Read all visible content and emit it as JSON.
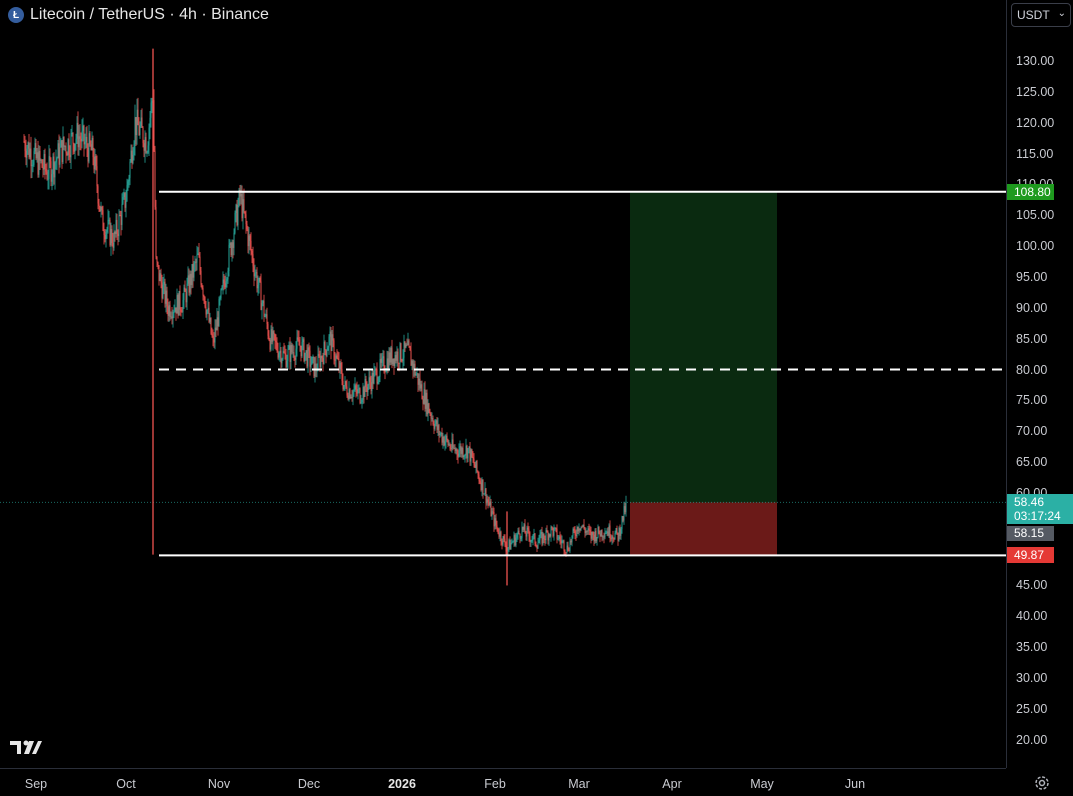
{
  "header": {
    "title": "Litecoin / TetherUS · 4h · Binance",
    "coin_icon": "litecoin-icon"
  },
  "currency": {
    "selected": "USDT"
  },
  "price_axis": {
    "labels": [
      "130.00",
      "125.00",
      "120.00",
      "115.00",
      "110.00",
      "105.00",
      "100.00",
      "95.00",
      "90.00",
      "85.00",
      "80.00",
      "75.00",
      "70.00",
      "65.00",
      "60.00",
      "45.00",
      "40.00",
      "35.00",
      "30.00",
      "25.00",
      "20.00"
    ]
  },
  "tags": {
    "target_price": "108.80",
    "current_price": "58.46",
    "countdown": "03:17:24",
    "cursor_price": "58.15",
    "stop_price": "49.87"
  },
  "time_axis": {
    "labels": [
      {
        "text": "Sep",
        "bold": false
      },
      {
        "text": "Oct",
        "bold": false
      },
      {
        "text": "Nov",
        "bold": false
      },
      {
        "text": "Dec",
        "bold": false
      },
      {
        "text": "2026",
        "bold": true
      },
      {
        "text": "Feb",
        "bold": false
      },
      {
        "text": "Mar",
        "bold": false
      },
      {
        "text": "Apr",
        "bold": false
      },
      {
        "text": "May",
        "bold": false
      },
      {
        "text": "Jun",
        "bold": false
      }
    ]
  },
  "colors": {
    "up": "#26a69a",
    "down": "#ef5350",
    "profit_zone": "#0a2a10",
    "loss_zone": "#6b1a18",
    "target_tag": "#1e9a1e",
    "stop_tag": "#e53935",
    "price_tag": "#2bb0a5"
  },
  "chart_data": {
    "type": "candlestick",
    "symbol": "Litecoin / TetherUS",
    "interval": "4h",
    "exchange": "Binance",
    "ylim": [
      17,
      135
    ],
    "close_path": [
      {
        "x": "Aug 28",
        "y": 117
      },
      {
        "x": "Sep 1",
        "y": 114
      },
      {
        "x": "Sep 5",
        "y": 112
      },
      {
        "x": "Sep 10",
        "y": 116
      },
      {
        "x": "Sep 15",
        "y": 118
      },
      {
        "x": "Sep 20",
        "y": 115
      },
      {
        "x": "Sep 23",
        "y": 104
      },
      {
        "x": "Sep 27",
        "y": 101
      },
      {
        "x": "Oct 1",
        "y": 108
      },
      {
        "x": "Oct 4",
        "y": 120
      },
      {
        "x": "Oct 8",
        "y": 117
      },
      {
        "x": "Oct 10",
        "y": 125
      },
      {
        "x": "Oct 11",
        "y": 97
      },
      {
        "x": "Oct 15",
        "y": 90
      },
      {
        "x": "Oct 20",
        "y": 91
      },
      {
        "x": "Oct 25",
        "y": 98
      },
      {
        "x": "Oct 30",
        "y": 84
      },
      {
        "x": "Nov 3",
        "y": 95
      },
      {
        "x": "Nov 8",
        "y": 108
      },
      {
        "x": "Nov 13",
        "y": 96
      },
      {
        "x": "Nov 18",
        "y": 85
      },
      {
        "x": "Nov 23",
        "y": 82
      },
      {
        "x": "Nov 28",
        "y": 84
      },
      {
        "x": "Dec 3",
        "y": 80
      },
      {
        "x": "Dec 8",
        "y": 85
      },
      {
        "x": "Dec 13",
        "y": 77
      },
      {
        "x": "Dec 18",
        "y": 76
      },
      {
        "x": "Dec 23",
        "y": 79
      },
      {
        "x": "Dec 28",
        "y": 82
      },
      {
        "x": "Jan 3",
        "y": 83
      },
      {
        "x": "Jan 8",
        "y": 76
      },
      {
        "x": "Jan 13",
        "y": 70
      },
      {
        "x": "Jan 18",
        "y": 67
      },
      {
        "x": "Jan 23",
        "y": 67
      },
      {
        "x": "Jan 28",
        "y": 61
      },
      {
        "x": "Feb 1",
        "y": 55
      },
      {
        "x": "Feb 5",
        "y": 51
      },
      {
        "x": "Feb 10",
        "y": 54
      },
      {
        "x": "Feb 15",
        "y": 52
      },
      {
        "x": "Feb 20",
        "y": 54
      },
      {
        "x": "Feb 25",
        "y": 51
      },
      {
        "x": "Mar 1",
        "y": 55
      },
      {
        "x": "Mar 5",
        "y": 53
      },
      {
        "x": "Mar 10",
        "y": 54
      },
      {
        "x": "Mar 14",
        "y": 53
      },
      {
        "x": "Mar 17",
        "y": 58.46
      }
    ],
    "spike_wicks": [
      {
        "x": "Oct 10",
        "low": 50,
        "high": 132
      },
      {
        "x": "Feb 5",
        "low": 45,
        "high": 57
      }
    ],
    "horizontal_lines": [
      {
        "price": 108.8,
        "style": "solid",
        "from": "Oct 12"
      },
      {
        "price": 80,
        "style": "dashed",
        "from": "Oct 12"
      },
      {
        "price": 49.87,
        "style": "solid",
        "from": "Oct 12"
      }
    ],
    "long_position": {
      "entry": 58.46,
      "target": 108.8,
      "stop": 49.87,
      "from": "Mar 18",
      "to": "May 6"
    },
    "current_price": 58.46
  }
}
